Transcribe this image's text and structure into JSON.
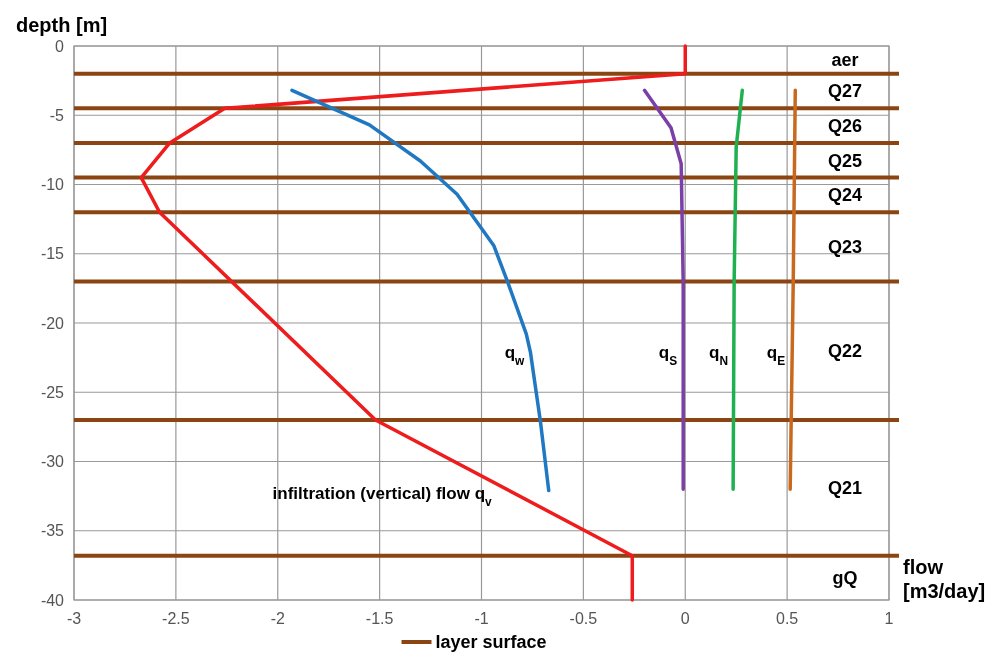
{
  "chart_data": {
    "type": "line",
    "ylabel": "depth [m]",
    "xlabel": "flow [m3/day]",
    "xlim": [
      -3,
      1
    ],
    "xticks": [
      -3,
      -2.5,
      -2,
      -1.5,
      -1,
      -0.5,
      0,
      0.5,
      1
    ],
    "ylim": [
      -40,
      0
    ],
    "yticks": [
      0,
      -5,
      -10,
      -15,
      -20,
      -25,
      -30,
      -35,
      -40
    ],
    "grid": true,
    "legend": "bottom",
    "line_style": "solid",
    "marker": "none",
    "series": [
      {
        "name": "infiltration (vertical) flow q$_{v}$",
        "color": "#ee1c1c",
        "x": [
          0,
          0,
          -2.26,
          -2.53,
          -2.67,
          -2.58,
          -1.52,
          -0.26,
          -0.26
        ],
        "values": [
          0,
          -2,
          -4.5,
          -7,
          -9.5,
          -12,
          -27,
          -36.8,
          -40
        ]
      },
      {
        "name": "q$_{w}$",
        "color": "#1f78c1",
        "x": [
          -1.93,
          -1.55,
          -1.3,
          -1.12,
          -0.94,
          -0.87,
          -0.78,
          -0.76,
          -0.71,
          -0.67
        ],
        "values": [
          -3.2,
          -5.7,
          -8.3,
          -10.7,
          -14.4,
          -17.1,
          -20.8,
          -22.1,
          -27.2,
          -32.1
        ]
      },
      {
        "name": "q$_{S}$",
        "color": "#7b3fa8",
        "x": [
          -0.2,
          -0.07,
          -0.02,
          -0.01,
          -0.01
        ],
        "values": [
          -3.2,
          -5.9,
          -8.5,
          -17.1,
          -32
        ]
      },
      {
        "name": "q$_{N}$",
        "color": "#1fb050",
        "x": [
          0.28,
          0.25,
          0.24,
          0.235
        ],
        "values": [
          -3.2,
          -7.3,
          -17,
          -32
        ]
      },
      {
        "name": "q$_{E}$",
        "color": "#c8691e",
        "x": [
          0.54,
          0.53,
          0.515
        ],
        "values": [
          -3.2,
          -17,
          -32
        ]
      }
    ],
    "ref_lines": [
      {
        "axis": "y",
        "value": -2,
        "label": "layer surface",
        "color": "#8b4513"
      },
      {
        "axis": "y",
        "value": -4.5,
        "color": "#8b4513"
      },
      {
        "axis": "y",
        "value": -7,
        "color": "#8b4513"
      },
      {
        "axis": "y",
        "value": -9.5,
        "color": "#8b4513"
      },
      {
        "axis": "y",
        "value": -12,
        "color": "#8b4513"
      },
      {
        "axis": "y",
        "value": -17,
        "color": "#8b4513"
      },
      {
        "axis": "y",
        "value": -27,
        "color": "#8b4513"
      },
      {
        "axis": "y",
        "value": -36.8,
        "color": "#8b4513"
      }
    ],
    "annotations": [
      "aer",
      "Q27",
      "Q26",
      "Q25",
      "Q24",
      "Q23",
      "Q22",
      "Q21",
      "gQ"
    ]
  }
}
